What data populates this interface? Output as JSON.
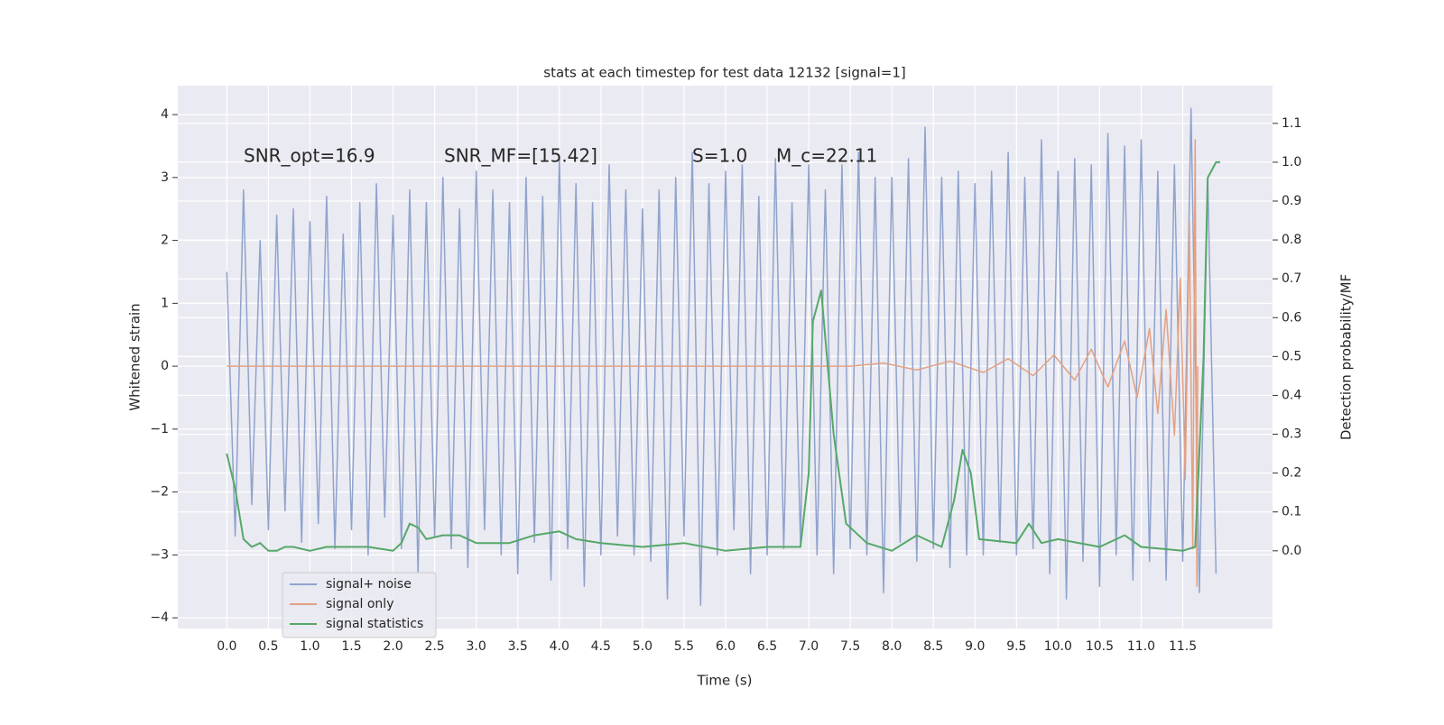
{
  "chart_data": {
    "type": "line",
    "title": "stats at each timestep for test data 12132 [signal=1]",
    "x_label": "Time (s)",
    "y_label": "Whitened strain",
    "y2_label": "Detection probability/MF",
    "annotations": [
      "SNR_opt=16.9",
      "SNR_MF=[15.42]",
      "S=1.0",
      "M_c=22.11"
    ],
    "grid": true,
    "legend": "lower left",
    "xlim": [
      -0.59,
      12.58
    ],
    "ylim": [
      -4.17,
      4.46
    ],
    "y2lim": [
      -0.2,
      1.197
    ],
    "xticks": [
      {
        "value": 0,
        "label": "0.0"
      },
      0.5,
      {
        "value": 1,
        "label": "1.0"
      },
      1.5,
      {
        "value": 2,
        "label": "2.0"
      },
      2.5,
      {
        "value": 3,
        "label": "3.0"
      },
      3.5,
      {
        "value": 4,
        "label": "4.0"
      },
      4.5,
      {
        "value": 5,
        "label": "5.0"
      },
      5.5,
      {
        "value": 6,
        "label": "6.0"
      },
      6.5,
      {
        "value": 7,
        "label": "7.0"
      },
      7.5,
      {
        "value": 8,
        "label": "8.0"
      },
      8.5,
      {
        "value": 9,
        "label": "9.0"
      },
      9.5,
      {
        "value": 10,
        "label": "10.0"
      },
      10.5,
      {
        "value": 11,
        "label": "11.0"
      },
      11.5
    ],
    "yticks": [
      {
        "value": -4,
        "label": "−4"
      },
      {
        "value": -3,
        "label": "−3"
      },
      {
        "value": -2,
        "label": "−2"
      },
      {
        "value": -1,
        "label": "−1"
      },
      0,
      1,
      2,
      3,
      4
    ],
    "y2ticks": [
      {
        "value": 0,
        "label": "0.0"
      },
      0.1,
      0.2,
      0.3,
      0.4,
      0.5,
      0.6,
      0.7,
      0.8,
      0.9,
      {
        "value": 1,
        "label": "1.0"
      },
      1.1
    ],
    "series": [
      {
        "name": "signal+ noise",
        "color": "#8fa3cc",
        "x": [
          0.0,
          0.1,
          0.2,
          0.3,
          0.4,
          0.5,
          0.6,
          0.7,
          0.8,
          0.9,
          1.0,
          1.1,
          1.2,
          1.3,
          1.4,
          1.5,
          1.6,
          1.7,
          1.8,
          1.9,
          2.0,
          2.1,
          2.2,
          2.3,
          2.4,
          2.5,
          2.6,
          2.7,
          2.8,
          2.9,
          3.0,
          3.1,
          3.2,
          3.3,
          3.4,
          3.5,
          3.6,
          3.7,
          3.8,
          3.9,
          4.0,
          4.1,
          4.2,
          4.3,
          4.4,
          4.5,
          4.6,
          4.7,
          4.8,
          4.9,
          5.0,
          5.1,
          5.2,
          5.3,
          5.4,
          5.5,
          5.6,
          5.7,
          5.8,
          5.9,
          6.0,
          6.1,
          6.2,
          6.3,
          6.4,
          6.5,
          6.6,
          6.7,
          6.8,
          6.9,
          7.0,
          7.1,
          7.2,
          7.3,
          7.4,
          7.5,
          7.6,
          7.7,
          7.8,
          7.9,
          8.0,
          8.1,
          8.2,
          8.3,
          8.4,
          8.5,
          8.6,
          8.7,
          8.8,
          8.9,
          9.0,
          9.1,
          9.2,
          9.3,
          9.4,
          9.5,
          9.6,
          9.7,
          9.8,
          9.9,
          10.0,
          10.1,
          10.2,
          10.3,
          10.4,
          10.5,
          10.6,
          10.7,
          10.8,
          10.9,
          11.0,
          11.1,
          11.2,
          11.3,
          11.4,
          11.5,
          11.6,
          11.7,
          11.8,
          11.9
        ],
        "values": [
          1.5,
          -2.7,
          2.8,
          -2.2,
          2.0,
          -2.6,
          2.4,
          -2.3,
          2.5,
          -2.8,
          2.3,
          -2.5,
          2.7,
          -2.9,
          2.1,
          -2.6,
          2.6,
          -3.0,
          2.9,
          -2.4,
          2.4,
          -2.9,
          2.8,
          -3.3,
          2.6,
          -2.7,
          3.0,
          -2.9,
          2.5,
          -3.2,
          3.1,
          -2.6,
          2.8,
          -3.0,
          2.6,
          -3.3,
          3.0,
          -2.8,
          2.7,
          -3.4,
          3.3,
          -2.9,
          2.9,
          -3.5,
          2.6,
          -3.0,
          3.2,
          -2.7,
          2.8,
          -3.0,
          2.5,
          -3.1,
          2.8,
          -3.7,
          3.0,
          -2.7,
          3.4,
          -3.8,
          2.9,
          -3.0,
          3.1,
          -2.6,
          3.2,
          -3.3,
          2.7,
          -3.0,
          3.3,
          -2.9,
          2.6,
          -2.8,
          3.2,
          -3.0,
          2.8,
          -3.3,
          3.2,
          -2.9,
          3.4,
          -3.0,
          3.0,
          -3.6,
          3.0,
          -2.8,
          3.3,
          -3.1,
          3.8,
          -2.9,
          3.0,
          -3.2,
          3.1,
          -3.0,
          2.9,
          -3.0,
          3.1,
          -2.8,
          3.4,
          -3.0,
          3.0,
          -2.9,
          3.6,
          -3.3,
          3.1,
          -3.7,
          3.3,
          -3.1,
          3.2,
          -3.5,
          3.7,
          -3.0,
          3.5,
          -3.4,
          3.6,
          -3.1,
          3.1,
          -3.4,
          3.2,
          -3.1,
          4.1,
          -3.6,
          3.0,
          -3.3
        ]
      },
      {
        "name": "signal only",
        "color": "#e3a183",
        "x": [
          0,
          7.5,
          7.9,
          8.3,
          8.7,
          9.1,
          9.4,
          9.7,
          9.95,
          10.2,
          10.4,
          10.6,
          10.8,
          10.95,
          11.1,
          11.2,
          11.3,
          11.4,
          11.47,
          11.53,
          11.58,
          11.62,
          11.65,
          11.67,
          11.68
        ],
        "values": [
          0,
          0,
          0.05,
          -0.06,
          0.08,
          -0.1,
          0.12,
          -0.15,
          0.18,
          -0.22,
          0.27,
          -0.33,
          0.4,
          -0.5,
          0.6,
          -0.75,
          0.9,
          -1.1,
          1.4,
          -1.8,
          2.3,
          -2.9,
          3.6,
          -3.5,
          0
        ]
      },
      {
        "name": "signal statistics",
        "color": "#55a868",
        "axis": "y2",
        "x": [
          0.0,
          0.1,
          0.2,
          0.3,
          0.4,
          0.5,
          0.6,
          0.7,
          0.8,
          1.0,
          1.2,
          1.5,
          1.7,
          2.0,
          2.1,
          2.2,
          2.3,
          2.4,
          2.6,
          2.8,
          3.0,
          3.4,
          3.7,
          4.0,
          4.2,
          4.5,
          5.0,
          5.5,
          6.0,
          6.5,
          6.7,
          6.9,
          7.0,
          7.05,
          7.15,
          7.3,
          7.45,
          7.7,
          8.0,
          8.3,
          8.6,
          8.75,
          8.85,
          8.95,
          9.05,
          9.5,
          9.65,
          9.8,
          10.0,
          10.5,
          10.8,
          11.0,
          11.5,
          11.65,
          11.75,
          11.8,
          11.9,
          11.95
        ],
        "values": [
          0.25,
          0.16,
          0.03,
          0.01,
          0.02,
          0.0,
          0.0,
          0.01,
          0.01,
          0.0,
          0.01,
          0.01,
          0.01,
          0.0,
          0.02,
          0.07,
          0.06,
          0.03,
          0.04,
          0.04,
          0.02,
          0.02,
          0.04,
          0.05,
          0.03,
          0.02,
          0.01,
          0.02,
          0.0,
          0.01,
          0.01,
          0.01,
          0.2,
          0.59,
          0.67,
          0.3,
          0.07,
          0.02,
          0.0,
          0.04,
          0.01,
          0.13,
          0.26,
          0.2,
          0.03,
          0.02,
          0.07,
          0.02,
          0.03,
          0.01,
          0.04,
          0.01,
          0.0,
          0.01,
          0.5,
          0.96,
          1.0,
          1.0
        ]
      }
    ]
  }
}
